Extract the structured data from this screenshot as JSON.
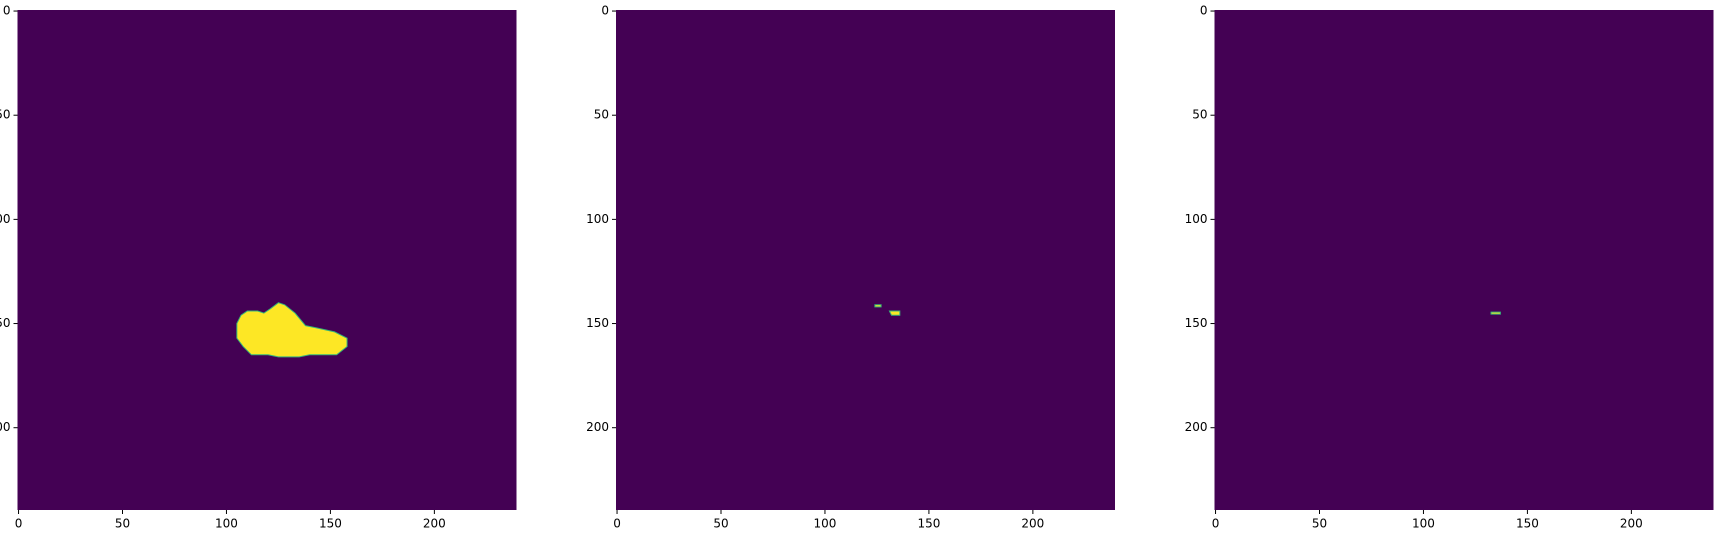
{
  "chart_data": [
    {
      "type": "image",
      "background": "#440154",
      "edge_color": "#35b779",
      "xlim": [
        -0.5,
        239.5
      ],
      "ylim": [
        239.5,
        -0.5
      ],
      "xticks": [
        0,
        50,
        100,
        150,
        200
      ],
      "yticks": [
        0,
        50,
        100,
        150,
        200
      ],
      "regions": [
        {
          "color": "#fde725",
          "x": [
            125,
            128,
            133,
            138,
            143,
            152,
            158,
            158,
            153,
            140,
            135,
            125,
            120,
            112,
            108,
            105,
            105,
            107,
            110,
            115,
            118,
            121
          ],
          "y": [
            140,
            141,
            145,
            151,
            152,
            154,
            157,
            161,
            165,
            165,
            166,
            166,
            165,
            165,
            161,
            157,
            150,
            146,
            144,
            144,
            145,
            143
          ]
        }
      ]
    },
    {
      "type": "image",
      "background": "#440154",
      "edge_color": "#35b779",
      "xlim": [
        -0.5,
        239.5
      ],
      "ylim": [
        239.5,
        -0.5
      ],
      "xticks": [
        0,
        50,
        100,
        150,
        200
      ],
      "yticks": [
        0,
        50,
        100,
        150,
        200
      ],
      "regions": [
        {
          "color": "#fde725",
          "x": [
            124,
            127,
            127,
            124
          ],
          "y": [
            141,
            141,
            142,
            142
          ]
        },
        {
          "color": "#fde725",
          "x": [
            131,
            136,
            136,
            132
          ],
          "y": [
            144,
            144,
            146,
            146
          ]
        }
      ]
    },
    {
      "type": "image",
      "background": "#440154",
      "edge_color": "#35b779",
      "xlim": [
        -0.5,
        239.5
      ],
      "ylim": [
        239.5,
        -0.5
      ],
      "xticks": [
        0,
        50,
        100,
        150,
        200
      ],
      "yticks": [
        0,
        50,
        100,
        150,
        200
      ],
      "regions": [
        {
          "color": "#fde725",
          "x": [
            132.5,
            137,
            137,
            132.5
          ],
          "y": [
            144.5,
            144.5,
            145.5,
            145.5
          ]
        }
      ]
    }
  ]
}
